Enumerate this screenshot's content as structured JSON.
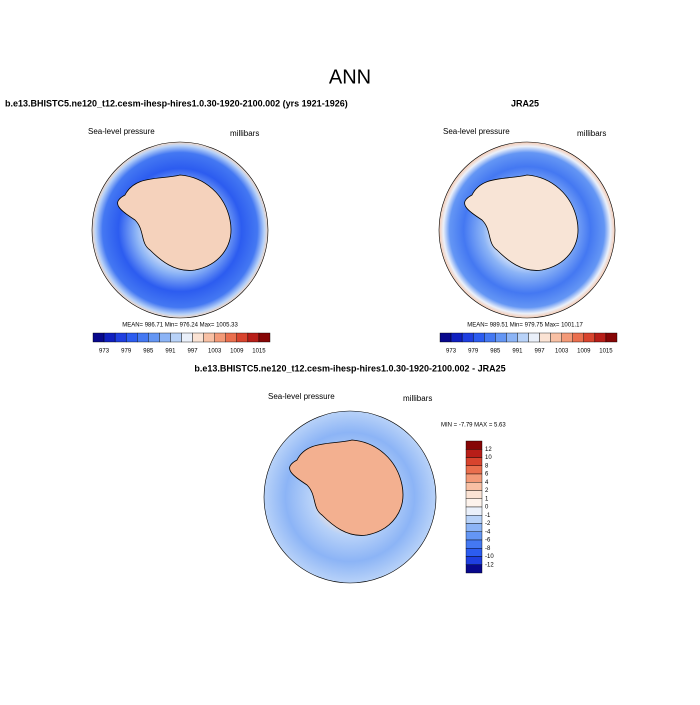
{
  "title": "ANN",
  "panels": [
    {
      "title": "b.e13.BHISTC5.ne120_t12.cesm-ihesp-hires1.0.30-1920-2100.002 (yrs 1921-1926)",
      "variable": "Sea-level pressure",
      "units": "millibars",
      "stats": "MEAN= 986.71  Min= 976.24  Max= 1005.33"
    },
    {
      "title": "JRA25",
      "variable": "Sea-level pressure",
      "units": "millibars",
      "stats": "MEAN= 989.51  Min= 979.75  Max= 1001.17"
    },
    {
      "title": "b.e13.BHISTC5.ne120_t12.cesm-ihesp-hires1.0.30-1920-2100.002 - JRA25",
      "variable": "Sea-level pressure",
      "units": "millibars",
      "stats": "MIN =  -7.79 MAX =   5.63"
    }
  ],
  "colorbar": {
    "labels": [
      973,
      979,
      985,
      991,
      997,
      1003,
      1009,
      1015
    ],
    "colors": [
      "#08088c",
      "#1020c0",
      "#1f3fe0",
      "#2c5cf0",
      "#4478f2",
      "#6496f4",
      "#8cb4f6",
      "#b8d2f8",
      "#eaf0fa",
      "#fbe3d4",
      "#f8c0a4",
      "#f39a78",
      "#ea6f4e",
      "#d8442e",
      "#b81e18",
      "#860606"
    ]
  },
  "diff_colorbar": {
    "labels": [
      12,
      10,
      8,
      6,
      4,
      2,
      1,
      0,
      -1,
      -2,
      -4,
      -6,
      -8,
      -10,
      -12
    ],
    "colors": [
      "#860606",
      "#b81e18",
      "#d8442e",
      "#ea6f4e",
      "#f39a78",
      "#f8c0a4",
      "#fbe3d4",
      "#fdf3ec",
      "#eaf0fa",
      "#b8d2f8",
      "#8cb4f6",
      "#6496f4",
      "#4478f2",
      "#2c5cf0",
      "#1f3fe0",
      "#08088c"
    ]
  }
}
